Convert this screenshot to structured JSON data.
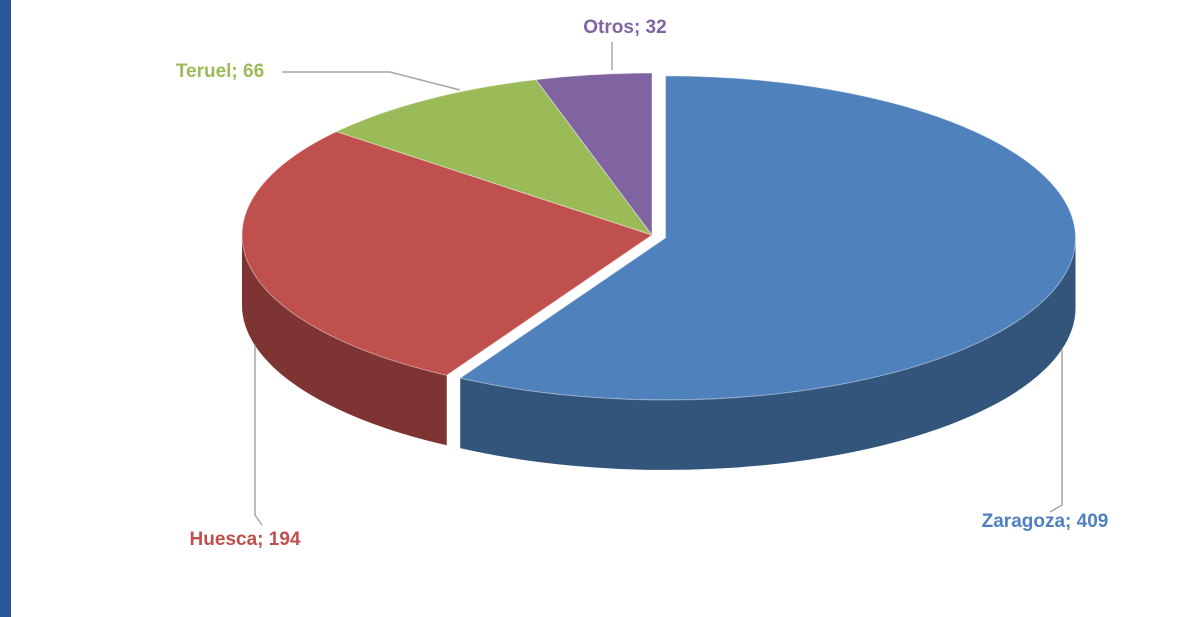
{
  "chart_data": {
    "type": "pie",
    "values": [
      409,
      194,
      66,
      32
    ],
    "value_labels": [
      "Zaragoza; 409",
      "Huesca; 194",
      "Teruel; 66",
      "Otros; 32"
    ],
    "colors": [
      "#4f81bd",
      "#c0504d",
      "#9bbb59",
      "#8064a2"
    ]
  }
}
